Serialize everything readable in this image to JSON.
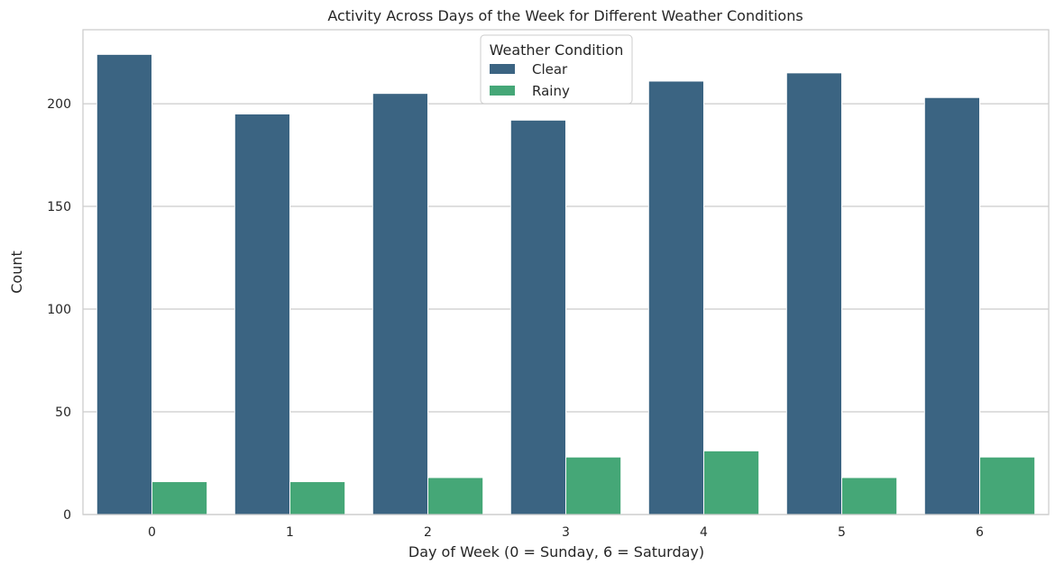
{
  "chart_data": {
    "type": "bar",
    "title": "Activity Across Days of the Week for Different Weather Conditions",
    "xlabel": "Day of Week (0 = Sunday, 6 = Saturday)",
    "ylabel": "Count",
    "categories": [
      "0",
      "1",
      "2",
      "3",
      "4",
      "5",
      "6"
    ],
    "series": [
      {
        "name": "Clear",
        "color": "#3b6482",
        "values": [
          224,
          195,
          205,
          192,
          211,
          215,
          203
        ]
      },
      {
        "name": "Rainy",
        "color": "#45a777",
        "values": [
          16,
          16,
          18,
          28,
          31,
          18,
          28
        ]
      }
    ],
    "ylim": [
      0,
      236
    ],
    "yticks": [
      0,
      50,
      100,
      150,
      200
    ],
    "grid": "horizontal",
    "legend": {
      "title": "Weather Condition",
      "placement": "top-center"
    }
  }
}
